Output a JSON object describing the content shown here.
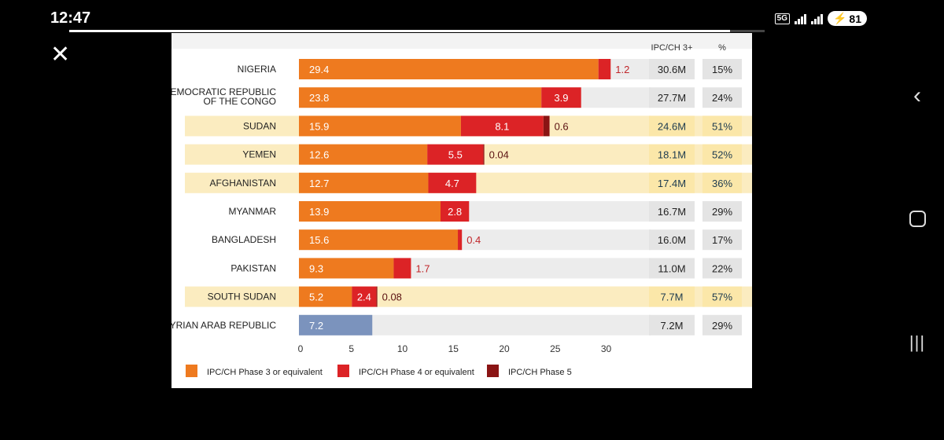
{
  "status_bar": {
    "time": "12:47",
    "network_label": "5G",
    "battery": "81"
  },
  "video_progress": 0.95,
  "chart_data": {
    "type": "bar",
    "stacked": true,
    "orientation": "horizontal",
    "columns": {
      "total_header": "IPC/CH 3+",
      "percent_header": "%"
    },
    "categories": [
      {
        "label": [
          "NIGERIA"
        ],
        "values": [
          29.4,
          1.2,
          null
        ],
        "labels": [
          "29.4",
          "1.2",
          ""
        ],
        "total": "30.6M",
        "percent": "15%",
        "highlight": false,
        "color_override": null
      },
      {
        "label": [
          "DEMOCRATIC REPUBLIC",
          "OF THE CONGO"
        ],
        "values": [
          23.8,
          3.9,
          null
        ],
        "labels": [
          "23.8",
          "3.9",
          ""
        ],
        "total": "27.7M",
        "percent": "24%",
        "highlight": false,
        "color_override": null
      },
      {
        "label": [
          "SUDAN"
        ],
        "values": [
          15.9,
          8.1,
          0.6
        ],
        "labels": [
          "15.9",
          "8.1",
          "0.6"
        ],
        "total": "24.6M",
        "percent": "51%",
        "highlight": true,
        "color_override": null
      },
      {
        "label": [
          "YEMEN"
        ],
        "values": [
          12.6,
          5.5,
          0.04
        ],
        "labels": [
          "12.6",
          "5.5",
          "0.04"
        ],
        "total": "18.1M",
        "percent": "52%",
        "highlight": true,
        "color_override": null
      },
      {
        "label": [
          "AFGHANISTAN"
        ],
        "values": [
          12.7,
          4.7,
          null
        ],
        "labels": [
          "12.7",
          "4.7",
          ""
        ],
        "total": "17.4M",
        "percent": "36%",
        "highlight": true,
        "color_override": null
      },
      {
        "label": [
          "MYANMAR"
        ],
        "values": [
          13.9,
          2.8,
          null
        ],
        "labels": [
          "13.9",
          "2.8",
          ""
        ],
        "total": "16.7M",
        "percent": "29%",
        "highlight": false,
        "color_override": null
      },
      {
        "label": [
          "BANGLADESH"
        ],
        "values": [
          15.6,
          0.4,
          null
        ],
        "labels": [
          "15.6",
          "0.4",
          ""
        ],
        "total": "16.0M",
        "percent": "17%",
        "highlight": false,
        "color_override": null
      },
      {
        "label": [
          "PAKISTAN"
        ],
        "values": [
          9.3,
          1.7,
          null
        ],
        "labels": [
          "9.3",
          "1.7",
          ""
        ],
        "total": "11.0M",
        "percent": "22%",
        "highlight": false,
        "color_override": null
      },
      {
        "label": [
          "SOUTH SUDAN"
        ],
        "values": [
          5.2,
          2.4,
          0.08
        ],
        "labels": [
          "5.2",
          "2.4",
          "0.08"
        ],
        "total": "7.7M",
        "percent": "57%",
        "highlight": true,
        "color_override": null
      },
      {
        "label": [
          "SYRIAN ARAB REPUBLIC"
        ],
        "values": [
          7.2,
          null,
          null
        ],
        "labels": [
          "7.2",
          "",
          ""
        ],
        "total": "7.2M",
        "percent": "29%",
        "highlight": false,
        "color_override": "#7b93bd"
      }
    ],
    "series": [
      {
        "name": "IPC/CH Phase 3 or equivalent",
        "color": "#ee7a1f"
      },
      {
        "name": "IPC/CH Phase 4 or equivalent",
        "color": "#dc2326"
      },
      {
        "name": "IPC/CH Phase 5",
        "color": "#8a1414"
      }
    ],
    "xlim": [
      0,
      33
    ],
    "xticks": [
      0,
      5,
      10,
      15,
      20,
      25,
      30
    ],
    "colors": {
      "highlight_band": "#fbecc0",
      "plain_band": "#ececec",
      "cell": "#e4e4e4",
      "highlight_cell": "#fbe7a9"
    }
  }
}
